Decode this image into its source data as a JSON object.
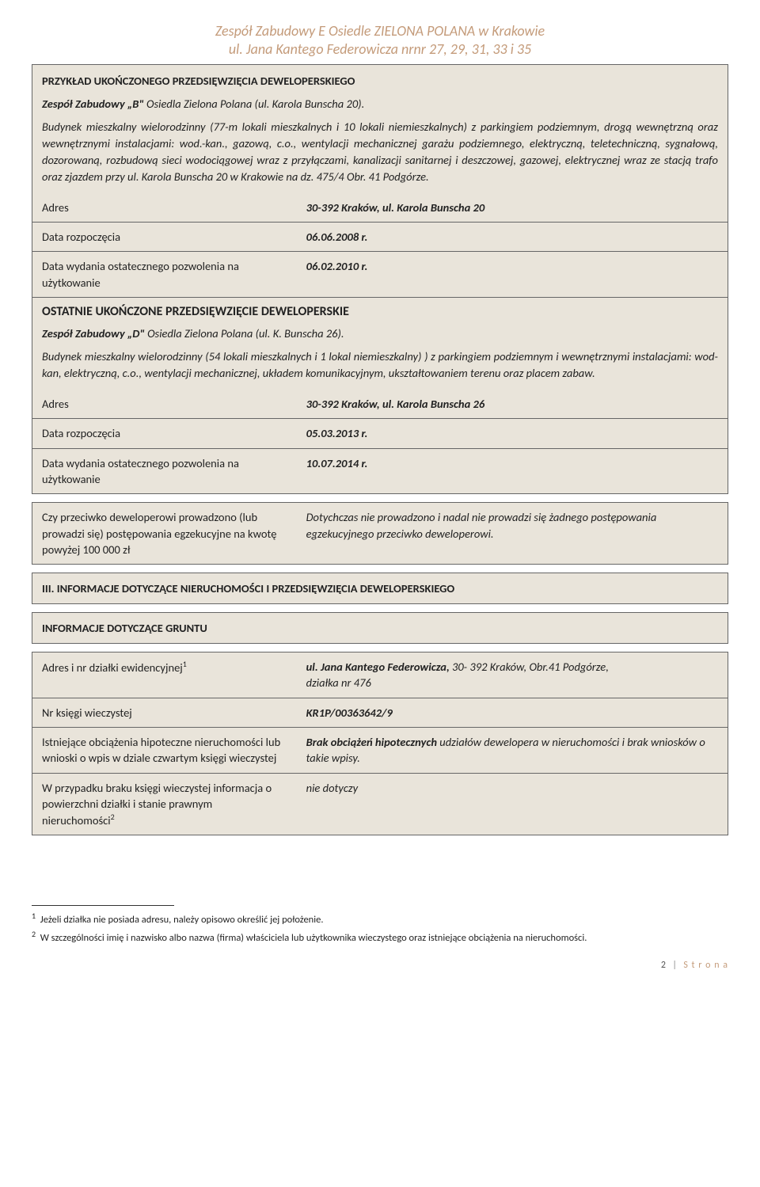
{
  "colors": {
    "header_text": "#c49b7a",
    "box_bg": "#e9e4da",
    "border": "#666666",
    "footer_text": "#555555",
    "footer_accent": "#c49b7a"
  },
  "header": {
    "line1": "Zespół Zabudowy E Osiedle ZIELONA POLANA w Krakowie",
    "line2": "ul. Jana Kantego Federowicza nrnr 27, 29, 31, 33 i 35"
  },
  "block1": {
    "title": "PRZYKŁAD UKOŃCZONEGO PRZEDSIĘWZIĘCIA DEWELOPERSKIEGO",
    "subtitle_prefix": "Zespół Zabudowy „B\" ",
    "subtitle_rest": "Osiedla Zielona Polana (ul. Karola Bunscha 20).",
    "desc": "Budynek mieszkalny wielorodzinny (77-m lokali mieszkalnych i 10 lokali niemieszkalnych) z parkingiem podziemnym, drogą wewnętrzną oraz wewnętrznymi instalacjami: wod.-kan., gazową, c.o., wentylacji mechanicznej garażu podziemnego, elektryczną, teletechniczną, sygnałową, dozorowaną, rozbudową sieci wodociągowej wraz z przyłączami, kanalizacji sanitarnej i deszczowej, gazowej, elektrycznej wraz ze stacją trafo oraz zjazdem przy ul. Karola Bunscha 20 w Krakowie na dz. 475/4 Obr. 41 Podgórze.",
    "rows": {
      "adres_label": "Adres",
      "adres_value": "30-392 Kraków, ul. Karola Bunscha 20",
      "rozp_label": "Data rozpoczęcia",
      "rozp_value": "06.06.2008 r.",
      "pozw_label": "Data wydania ostatecznego pozwolenia na użytkowanie",
      "pozw_value": "06.02.2010 r."
    },
    "section2_title": "OSTATNIE UKOŃCZONE PRZEDSIĘWZIĘCIE DEWELOPERSKIE",
    "sub2_prefix": "Zespół Zabudowy „D\" ",
    "sub2_rest": "Osiedla Zielona Polana (ul. K. Bunscha 26).",
    "desc2": "Budynek mieszkalny wielorodzinny (54 lokali mieszkalnych i 1 lokal niemieszkalny) ) z parkingiem podziemnym i wewnętrznymi instalacjami: wod-kan, elektryczną, c.o., wentylacji mechanicznej, układem komunikacyjnym, ukształtowaniem terenu oraz placem zabaw.",
    "rows2": {
      "adres_label": "Adres",
      "adres_value": "30-392 Kraków, ul. Karola Bunscha 26",
      "rozp_label": "Data rozpoczęcia",
      "rozp_value": "05.03.2013 r.",
      "pozw_label": "Data wydania ostatecznego pozwolenia na użytkowanie",
      "pozw_value": "10.07.2014 r."
    }
  },
  "block2": {
    "left": "Czy przeciwko deweloperowi prowadzono (lub prowadzi się) postępowania egzekucyjne na kwotę powyżej 100 000 zł",
    "right": "Dotychczas nie prowadzono i nadal nie prowadzi się żadnego postępowania egzekucyjnego przeciwko deweloperowi."
  },
  "section3_title": "III. INFORMACJE DOTYCZĄCE NIERUCHOMOŚCI I PRZEDSIĘWZIĘCIA DEWELOPERSKIEGO",
  "sub_section_title": "INFORMACJE DOTYCZĄCE GRUNTU",
  "block3": {
    "r1_label": "Adres i nr działki ewidencyjnej",
    "r1_val_bold": "ul. Jana Kantego Federowicza, ",
    "r1_val_rest": "30- 392 Kraków, Obr.41 Podgórze,",
    "r1_val_line2": "działka nr 476",
    "r2_label": "Nr księgi wieczystej",
    "r2_value": "KR1P/00363642/9",
    "r3_label": "Istniejące obciążenia hipoteczne nieruchomości lub wnioski o wpis w dziale czwartym księgi wieczystej",
    "r3_val_bold": "Brak obciążeń hipotecznych ",
    "r3_val_rest": "udziałów dewelopera w nieruchomości i brak wniosków o takie wpisy.",
    "r4_label": "W przypadku braku księgi wieczystej informacja o powierzchni działki i stanie prawnym nieruchomości",
    "r4_value": "nie dotyczy"
  },
  "footnotes": {
    "f1": "Jeżeli działka nie posiada adresu, należy opisowo określić jej położenie.",
    "f2": "W szczególności imię i nazwisko albo nazwa (firma) właściciela lub użytkownika wieczystego oraz istniejące obciążenia na nieruchomości."
  },
  "footer": {
    "page_num": "2",
    "label": "S t r o n a"
  }
}
